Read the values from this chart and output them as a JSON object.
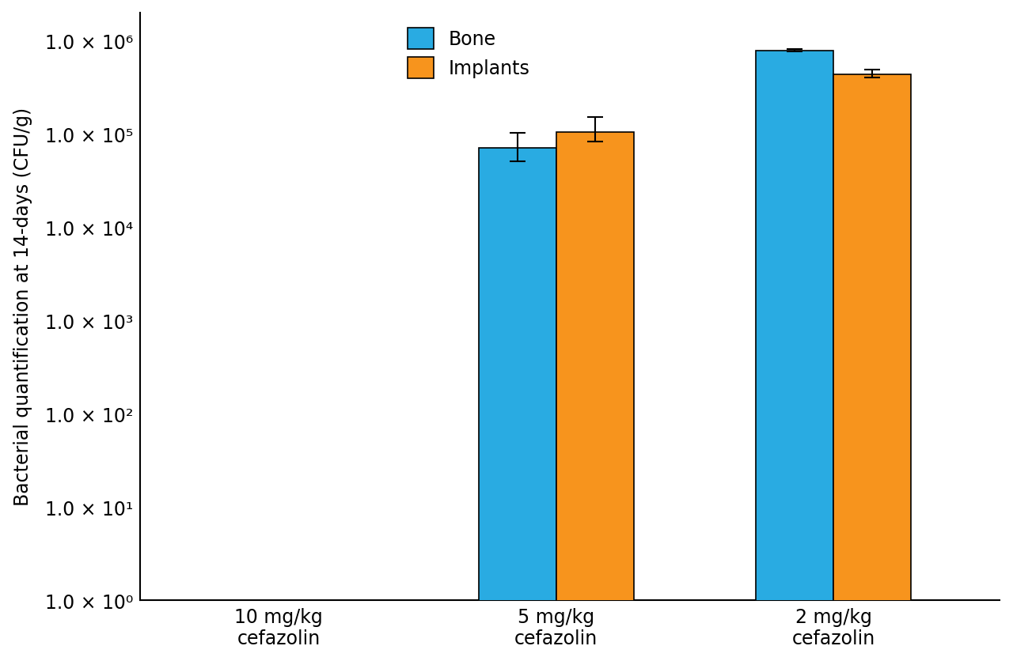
{
  "groups": [
    "10 mg/kg\ncefazolin",
    "5 mg/kg\ncefazolin",
    "2 mg/kg\ncefazolin"
  ],
  "bone_values": [
    0,
    70000.0,
    780000.0
  ],
  "implant_values": [
    0,
    105000.0,
    430000.0
  ],
  "bone_errors": [
    0,
    32000.0,
    25000.0
  ],
  "implant_errors": [
    0,
    45000.0,
    55000.0
  ],
  "bone_color": "#29ABE2",
  "implant_color": "#F7941D",
  "ylabel": "Bacterial quantification at 14-days (CFU/g)",
  "ymin": 1.0,
  "ymax": 2000000.0,
  "bar_width": 0.28,
  "legend_labels": [
    "Bone",
    "Implants"
  ],
  "background_color": "#ffffff",
  "font_color": "#000000",
  "tick_values": [
    1,
    10,
    100,
    1000,
    10000,
    100000,
    1000000
  ],
  "tick_labels": [
    "1.0 × 10⁰",
    "1.0 × 10¹",
    "1.0 × 10²",
    "1.0 × 10³",
    "1.0 × 10⁴",
    "1.0 × 10⁵",
    "1.0 × 10⁶"
  ],
  "group_positions": [
    0.5,
    1.5,
    2.5
  ],
  "xlim": [
    0,
    3.1
  ]
}
